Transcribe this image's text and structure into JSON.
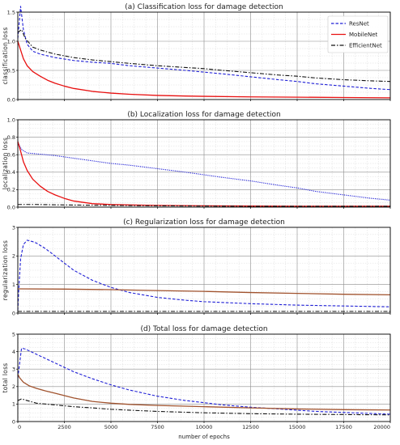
{
  "chart_data": [
    {
      "type": "line",
      "title": "(a) Classification loss for damage detection",
      "xlabel": "",
      "ylabel": "classification loss",
      "xlim": [
        0,
        20000
      ],
      "ylim": [
        0,
        1.5
      ],
      "yticks": [
        "0.0",
        "0.5",
        "1.0",
        "1.5"
      ],
      "xticks": [],
      "grid": true,
      "legend": {
        "placement": "top-right",
        "entries": [
          "ResNet",
          "MobileNet",
          "EfficientNet"
        ]
      },
      "series": [
        {
          "name": "ResNet",
          "color": "#1f1fd6",
          "style": "dashed",
          "x": [
            0,
            150,
            300,
            500,
            800,
            1200,
            2000,
            3000,
            4000,
            5000,
            6000,
            7500,
            9000,
            10000,
            11000,
            12500,
            14000,
            15000,
            16000,
            17500,
            19000,
            20000
          ],
          "y": [
            1.05,
            1.6,
            1.2,
            0.95,
            0.83,
            0.78,
            0.72,
            0.67,
            0.64,
            0.62,
            0.58,
            0.54,
            0.5,
            0.47,
            0.44,
            0.39,
            0.34,
            0.31,
            0.27,
            0.23,
            0.19,
            0.17
          ]
        },
        {
          "name": "MobileNet",
          "color": "#e81010",
          "style": "solid",
          "x": [
            0,
            100,
            300,
            500,
            800,
            1200,
            1600,
            2000,
            2500,
            3000,
            4000,
            5000,
            6000,
            7500,
            9000,
            10000,
            12500,
            15000,
            17500,
            20000
          ],
          "y": [
            1.0,
            0.9,
            0.7,
            0.58,
            0.48,
            0.4,
            0.33,
            0.28,
            0.23,
            0.19,
            0.14,
            0.11,
            0.09,
            0.07,
            0.06,
            0.055,
            0.045,
            0.04,
            0.035,
            0.03
          ]
        },
        {
          "name": "EfficientNet",
          "color": "#111111",
          "style": "dashdot",
          "x": [
            0,
            200,
            400,
            800,
            1200,
            2000,
            3000,
            4000,
            5000,
            6000,
            7500,
            9000,
            10000,
            11000,
            12500,
            14000,
            15000,
            16000,
            17500,
            19000,
            20000
          ],
          "y": [
            1.15,
            1.2,
            1.05,
            0.9,
            0.85,
            0.78,
            0.72,
            0.68,
            0.65,
            0.62,
            0.58,
            0.55,
            0.53,
            0.5,
            0.46,
            0.42,
            0.4,
            0.37,
            0.34,
            0.32,
            0.31
          ]
        }
      ]
    },
    {
      "type": "line",
      "title": "(b) Localization loss for damage detection",
      "xlabel": "",
      "ylabel": "localization loss",
      "xlim": [
        0,
        20000
      ],
      "ylim": [
        0,
        1.0
      ],
      "yticks": [
        "0.0",
        "0.2",
        "0.4",
        "0.6",
        "0.8",
        "1.0"
      ],
      "xticks": [],
      "grid": true,
      "series": [
        {
          "name": "ResNet",
          "color": "#1f1fd6",
          "style": "dotted",
          "x": [
            0,
            200,
            500,
            1000,
            2000,
            3000,
            4000,
            5000,
            6000,
            7500,
            9000,
            10000,
            11000,
            12500,
            14000,
            15000,
            16000,
            17500,
            19000,
            20000
          ],
          "y": [
            0.74,
            0.66,
            0.62,
            0.61,
            0.59,
            0.56,
            0.53,
            0.5,
            0.48,
            0.44,
            0.4,
            0.37,
            0.34,
            0.3,
            0.25,
            0.22,
            0.18,
            0.14,
            0.1,
            0.08
          ]
        },
        {
          "name": "MobileNet",
          "color": "#e81010",
          "style": "solid",
          "x": [
            0,
            100,
            300,
            500,
            800,
            1200,
            1600,
            2000,
            2500,
            3000,
            4000,
            5000,
            6000,
            7500,
            10000,
            12500,
            15000,
            17500,
            20000
          ],
          "y": [
            0.75,
            0.68,
            0.52,
            0.42,
            0.32,
            0.24,
            0.18,
            0.14,
            0.1,
            0.07,
            0.04,
            0.03,
            0.025,
            0.02,
            0.015,
            0.012,
            0.01,
            0.01,
            0.01
          ]
        },
        {
          "name": "EfficientNet",
          "color": "#111111",
          "style": "dashdot",
          "x": [
            0,
            1000,
            2500,
            5000,
            7500,
            10000,
            12500,
            15000,
            17500,
            20000
          ],
          "y": [
            0.03,
            0.03,
            0.025,
            0.02,
            0.015,
            0.012,
            0.01,
            0.01,
            0.01,
            0.01
          ]
        }
      ]
    },
    {
      "type": "line",
      "title": "(c) Regularization loss for damage detection",
      "xlabel": "",
      "ylabel": "regularization loss",
      "xlim": [
        0,
        20000
      ],
      "ylim": [
        0,
        3
      ],
      "yticks": [
        "0",
        "1",
        "2",
        "3"
      ],
      "xticks": [],
      "grid": true,
      "series": [
        {
          "name": "ResNet",
          "color": "#1f1fd6",
          "style": "dashed",
          "x": [
            0,
            50,
            150,
            300,
            500,
            800,
            1000,
            1500,
            2000,
            2500,
            3000,
            4000,
            5000,
            6000,
            7500,
            9000,
            10000,
            12500,
            15000,
            17500,
            20000
          ],
          "y": [
            0.1,
            0.8,
            1.9,
            2.4,
            2.55,
            2.5,
            2.45,
            2.25,
            2.0,
            1.75,
            1.5,
            1.15,
            0.9,
            0.72,
            0.55,
            0.45,
            0.4,
            0.33,
            0.28,
            0.25,
            0.22
          ]
        },
        {
          "name": "MobileNet",
          "color": "#a0522d",
          "style": "solid",
          "x": [
            0,
            2500,
            5000,
            7500,
            10000,
            12500,
            15000,
            17500,
            20000
          ],
          "y": [
            0.85,
            0.84,
            0.82,
            0.79,
            0.76,
            0.72,
            0.69,
            0.66,
            0.64
          ]
        },
        {
          "name": "EfficientNet",
          "color": "#111111",
          "style": "dashdot",
          "x": [
            0,
            2500,
            5000,
            7500,
            10000,
            12500,
            15000,
            17500,
            20000
          ],
          "y": [
            0.06,
            0.06,
            0.06,
            0.06,
            0.06,
            0.06,
            0.06,
            0.06,
            0.06
          ]
        }
      ]
    },
    {
      "type": "line",
      "title": "(d) Total loss for damage detection",
      "xlabel": "number of epochs",
      "ylabel": "total loss",
      "xlim": [
        0,
        20000
      ],
      "ylim": [
        0,
        5
      ],
      "yticks": [
        "0",
        "1",
        "2",
        "3",
        "4",
        "5"
      ],
      "xticks": [
        "0",
        "2500",
        "5000",
        "7500",
        "10000",
        "12500",
        "15000",
        "17500",
        "20000"
      ],
      "grid": true,
      "series": [
        {
          "name": "ResNet",
          "color": "#1f1fd6",
          "style": "dashed",
          "x": [
            0,
            200,
            400,
            700,
            1000,
            1500,
            2000,
            3000,
            4000,
            5000,
            6000,
            7500,
            9000,
            10000,
            11000,
            12500,
            14000,
            15000,
            16000,
            17500,
            19000,
            20000
          ],
          "y": [
            2.5,
            4.2,
            4.15,
            4.0,
            3.85,
            3.6,
            3.35,
            2.85,
            2.45,
            2.1,
            1.8,
            1.45,
            1.2,
            1.08,
            0.95,
            0.82,
            0.72,
            0.65,
            0.58,
            0.52,
            0.46,
            0.42
          ]
        },
        {
          "name": "MobileNet",
          "color": "#a0522d",
          "style": "solid",
          "x": [
            0,
            100,
            300,
            600,
            1000,
            1500,
            2000,
            3000,
            4000,
            5000,
            6000,
            7500,
            10000,
            12500,
            15000,
            17500,
            20000
          ],
          "y": [
            2.7,
            2.5,
            2.25,
            2.05,
            1.9,
            1.75,
            1.62,
            1.35,
            1.15,
            1.05,
            0.98,
            0.92,
            0.85,
            0.78,
            0.72,
            0.68,
            0.66
          ]
        },
        {
          "name": "EfficientNet",
          "color": "#111111",
          "style": "dashdot",
          "x": [
            0,
            200,
            500,
            1000,
            2000,
            3000,
            4000,
            5000,
            6000,
            7500,
            10000,
            12500,
            15000,
            17500,
            20000
          ],
          "y": [
            1.2,
            1.3,
            1.2,
            1.05,
            0.95,
            0.85,
            0.78,
            0.7,
            0.65,
            0.58,
            0.5,
            0.45,
            0.42,
            0.4,
            0.38
          ]
        }
      ]
    }
  ]
}
